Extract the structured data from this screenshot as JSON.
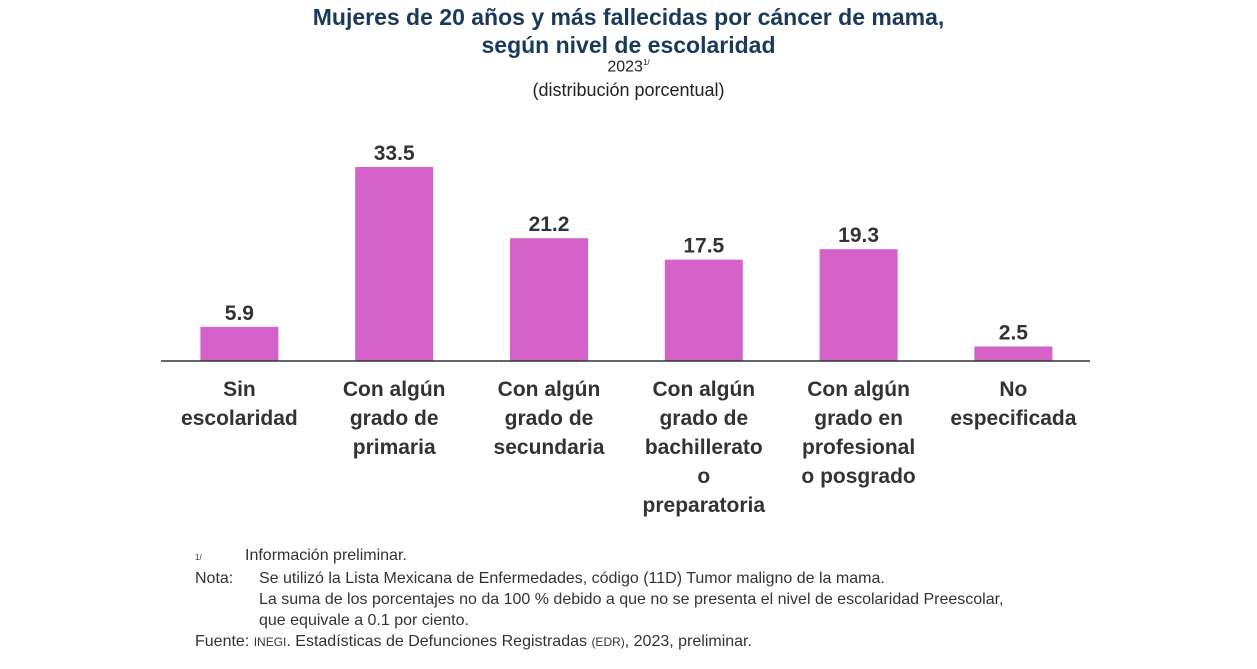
{
  "chart_data": {
    "type": "bar",
    "title": "Mujeres de 20 años y más fallecidas por cáncer de mama, según nivel de escolaridad",
    "title_lines": [
      "Mujeres de 20 años y más fallecidas por cáncer de mama,",
      "según nivel de escolaridad"
    ],
    "year": "2023",
    "year_mark": "1/",
    "subtitle": "(distribución porcentual)",
    "categories": [
      [
        "Sin",
        "escolaridad"
      ],
      [
        "Con algún",
        "grado de",
        "primaria"
      ],
      [
        "Con algún",
        "grado de",
        "secundaria"
      ],
      [
        "Con algún",
        "grado de",
        "bachillerato",
        "o",
        "preparatoria"
      ],
      [
        "Con algún",
        "grado en",
        "profesional",
        "o posgrado"
      ],
      [
        "No",
        "especificada"
      ]
    ],
    "values": [
      5.9,
      33.5,
      21.2,
      17.5,
      19.3,
      2.5
    ],
    "data_labels": [
      "5.9",
      "33.5",
      "21.2",
      "17.5",
      "19.3",
      "2.5"
    ],
    "ylim": [
      0,
      35
    ],
    "grid": false,
    "colors": {
      "bar": "#d462c8",
      "title": "#1a3a5c"
    }
  },
  "notes": {
    "mark": "1/",
    "preliminary": "Información preliminar.",
    "nota_label": "Nota:",
    "nota_lines": [
      "Se utilizó la Lista Mexicana de Enfermedades, código (11D) Tumor maligno de la mama.",
      "La suma de los porcentajes no da 100 % debido a que no se presenta el nivel de escolaridad Preescolar,",
      "que equivale a 0.1 por ciento."
    ],
    "fuente_label": "Fuente:",
    "fuente_org": "INEGI",
    "fuente_text": ". Estadísticas de Defunciones Registradas ",
    "fuente_abbr": "(EDR)",
    "fuente_end": ", 2023, preliminar."
  }
}
